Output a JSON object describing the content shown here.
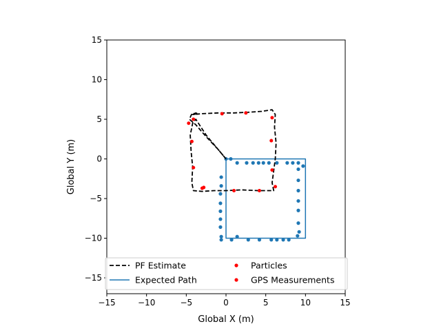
{
  "chart_data": {
    "type": "line",
    "title": "",
    "xlabel": "Global X (m)",
    "ylabel": "Global Y (m)",
    "xlim": [
      -15,
      15
    ],
    "ylim": [
      -17,
      15
    ],
    "xticks": [
      -15,
      -10,
      -5,
      0,
      5,
      10,
      15
    ],
    "yticks": [
      -15,
      -10,
      -5,
      0,
      5,
      10,
      15
    ],
    "xtick_labels": [
      "−15",
      "−10",
      "−5",
      "0",
      "5",
      "10",
      "15"
    ],
    "ytick_labels": [
      "−15",
      "−10",
      "−5",
      "0",
      "5",
      "10",
      "15"
    ],
    "grid": false,
    "legend_position": "bottom",
    "series": [
      {
        "name": "PF Estimate",
        "style": "dashed",
        "color": "#000000",
        "x": [
          0.0,
          -1.0,
          -2.5,
          -3.8,
          -4.6,
          -4.4,
          -4.2,
          -4.0,
          -3.8,
          -3.6,
          -4.1,
          -4.2,
          -3.0,
          -1.0,
          1.0,
          3.0,
          4.5,
          5.8,
          6.2,
          6.1,
          6.3,
          6.2,
          6.0,
          5.8,
          6.0,
          5.7,
          4.0,
          2.0,
          0.0,
          -1.5,
          -3.0,
          -4.1,
          -4.3,
          -4.2,
          -4.4,
          -4.5,
          -4.2,
          -3.8,
          -2.5,
          -1.0,
          0.0
        ],
        "y": [
          0.0,
          1.2,
          2.8,
          4.3,
          5.0,
          5.5,
          5.8,
          5.7,
          5.8,
          5.7,
          5.6,
          5.6,
          5.7,
          5.8,
          5.8,
          5.9,
          6.0,
          6.2,
          5.6,
          4.0,
          2.0,
          0.0,
          -1.5,
          -3.0,
          -4.0,
          -4.0,
          -4.0,
          -3.9,
          -4.0,
          -4.0,
          -4.1,
          -4.0,
          -3.0,
          -1.0,
          1.0,
          3.0,
          4.5,
          5.0,
          3.0,
          1.2,
          0.0
        ]
      },
      {
        "name": "Expected Path",
        "style": "solid",
        "color": "#1f77b4",
        "x": [
          0,
          10,
          10,
          0,
          0
        ],
        "y": [
          0,
          0,
          -10,
          -10,
          0
        ]
      },
      {
        "name": "Particles",
        "style": "markers",
        "color": "#ff0000",
        "x": [
          -4.7,
          -4.1,
          -4.3,
          -4.1,
          -3.0,
          -0.5,
          2.5,
          5.8,
          5.7,
          5.8,
          6.2,
          4.2,
          1.0,
          -2.8
        ],
        "y": [
          4.5,
          5.0,
          2.2,
          -1.1,
          -3.7,
          5.7,
          5.8,
          5.2,
          2.3,
          -1.4,
          -3.5,
          -4.0,
          -4.0,
          -3.6
        ]
      },
      {
        "name": "GPS Measurements",
        "style": "markers",
        "color": "#1f77b4",
        "x": [
          0.0,
          0.6,
          1.4,
          2.6,
          3.4,
          4.1,
          4.7,
          5.4,
          6.4,
          7.7,
          8.4,
          9.1,
          9.7,
          9.1,
          9.1,
          9.1,
          9.1,
          9.1,
          9.1,
          9.2,
          9.0,
          7.9,
          7.2,
          6.4,
          5.7,
          4.2,
          2.8,
          1.4,
          0.7,
          -0.6,
          -0.6,
          -0.7,
          -0.7,
          -0.7,
          -0.7,
          -0.7,
          -0.6,
          -0.6
        ],
        "y": [
          0.0,
          0.0,
          -0.5,
          -0.5,
          -0.5,
          -0.5,
          -0.5,
          -0.5,
          -0.5,
          -0.5,
          -0.5,
          -0.5,
          -0.9,
          -1.3,
          -2.7,
          -4.0,
          -5.3,
          -6.5,
          -8.1,
          -9.2,
          -9.7,
          -10.2,
          -10.2,
          -10.2,
          -10.2,
          -10.2,
          -10.2,
          -9.8,
          -10.2,
          -10.2,
          -9.8,
          -8.6,
          -7.6,
          -6.6,
          -5.6,
          -4.4,
          -3.4,
          -2.3
        ]
      }
    ]
  }
}
